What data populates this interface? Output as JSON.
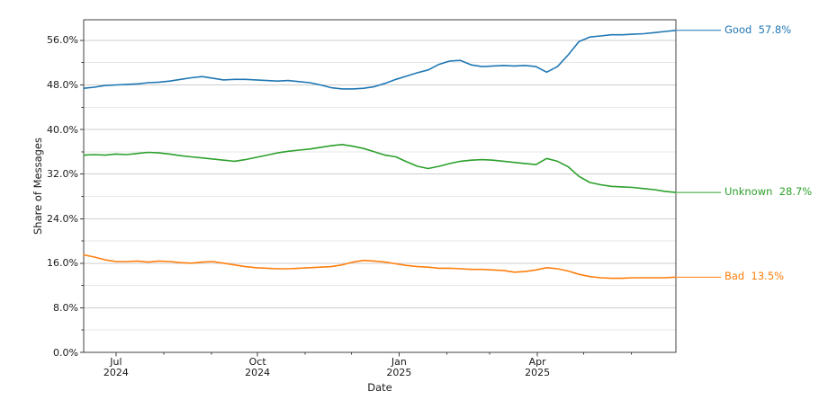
{
  "figure": {
    "background": "#ffffff"
  },
  "colors": {
    "good": "#1f77b4",
    "unknown": "#2ca02c",
    "bad": "#ff7f0e",
    "grid_major": "#cdcdcd",
    "grid_minor": "#e7e7e7",
    "spine": "#404040",
    "tick": "#404040",
    "text": "#1a1a1a"
  },
  "chart_data": {
    "type": "line",
    "title": "",
    "xlabel": "Date",
    "ylabel": "Share of Messages",
    "ylim": [
      0,
      59.7
    ],
    "grid": "horizontal only, major (8%) and minor (4%) lines, no vertical gridlines",
    "legend_position": "direct line labels at right edge with leader lines",
    "yticks_major": {
      "values": [
        0,
        8,
        16,
        24,
        32,
        40,
        48,
        56
      ],
      "labels": [
        "0.0%",
        "8.0%",
        "16.0%",
        "24.0%",
        "32.0%",
        "40.0%",
        "48.0%",
        "56.0%"
      ]
    },
    "yticks_minor": [
      4,
      12,
      20,
      28,
      36,
      44,
      52
    ],
    "xticks_major": [
      {
        "date": "2024-07-01",
        "label": "Jul\n2024"
      },
      {
        "date": "2024-10-01",
        "label": "Oct\n2024"
      },
      {
        "date": "2025-01-01",
        "label": "Jan\n2025"
      },
      {
        "date": "2025-04-01",
        "label": "Apr\n2025"
      }
    ],
    "xticks_minor": [
      "2024-08-01",
      "2024-09-01",
      "2024-11-01",
      "2024-12-01",
      "2025-02-01",
      "2025-03-01",
      "2025-05-01",
      "2025-06-01"
    ],
    "x_dates": [
      "2024-06-10",
      "2024-06-17",
      "2024-06-24",
      "2024-07-01",
      "2024-07-08",
      "2024-07-15",
      "2024-07-22",
      "2024-07-29",
      "2024-08-05",
      "2024-08-12",
      "2024-08-19",
      "2024-08-26",
      "2024-09-02",
      "2024-09-09",
      "2024-09-16",
      "2024-09-23",
      "2024-09-30",
      "2024-10-07",
      "2024-10-14",
      "2024-10-21",
      "2024-10-28",
      "2024-11-04",
      "2024-11-11",
      "2024-11-18",
      "2024-11-25",
      "2024-12-02",
      "2024-12-09",
      "2024-12-16",
      "2024-12-23",
      "2024-12-30",
      "2025-01-06",
      "2025-01-13",
      "2025-01-20",
      "2025-01-27",
      "2025-02-03",
      "2025-02-10",
      "2025-02-17",
      "2025-02-24",
      "2025-03-03",
      "2025-03-10",
      "2025-03-17",
      "2025-03-24",
      "2025-03-31",
      "2025-04-07",
      "2025-04-14",
      "2025-04-21",
      "2025-04-28",
      "2025-05-05",
      "2025-05-12",
      "2025-05-19",
      "2025-05-26",
      "2025-06-02",
      "2025-06-09",
      "2025-06-16",
      "2025-06-23",
      "2025-06-30"
    ],
    "series": [
      {
        "name": "Good",
        "color": "#1f77b4",
        "final_value": 57.8,
        "end_label": "Good  57.8%",
        "values": [
          47.4,
          47.6,
          47.9,
          48.0,
          48.1,
          48.2,
          48.4,
          48.5,
          48.7,
          49.0,
          49.3,
          49.5,
          49.2,
          48.9,
          49.0,
          49.0,
          48.9,
          48.8,
          48.7,
          48.8,
          48.6,
          48.4,
          48.0,
          47.5,
          47.3,
          47.3,
          47.4,
          47.7,
          48.3,
          49.0,
          49.6,
          50.2,
          50.7,
          51.7,
          52.3,
          52.4,
          51.6,
          51.3,
          51.4,
          51.5,
          51.4,
          51.5,
          51.3,
          50.3,
          51.3,
          53.4,
          55.8,
          56.6,
          56.8,
          57.0,
          57.0,
          57.1,
          57.2,
          57.4,
          57.6,
          57.8
        ]
      },
      {
        "name": "Unknown",
        "color": "#2ca02c",
        "final_value": 28.7,
        "end_label": "Unknown  28.7%",
        "values": [
          35.4,
          35.5,
          35.4,
          35.6,
          35.5,
          35.7,
          35.9,
          35.8,
          35.6,
          35.3,
          35.1,
          34.9,
          34.7,
          34.5,
          34.3,
          34.6,
          35.0,
          35.4,
          35.8,
          36.1,
          36.3,
          36.5,
          36.8,
          37.1,
          37.3,
          37.0,
          36.6,
          36.0,
          35.4,
          35.1,
          34.2,
          33.4,
          33.0,
          33.4,
          33.9,
          34.3,
          34.5,
          34.6,
          34.5,
          34.3,
          34.1,
          33.9,
          33.7,
          34.8,
          34.3,
          33.3,
          31.6,
          30.5,
          30.1,
          29.8,
          29.7,
          29.6,
          29.4,
          29.2,
          28.9,
          28.7
        ]
      },
      {
        "name": "Bad",
        "color": "#ff7f0e",
        "final_value": 13.5,
        "end_label": "Bad  13.5%",
        "values": [
          17.5,
          17.1,
          16.6,
          16.3,
          16.3,
          16.4,
          16.2,
          16.4,
          16.3,
          16.1,
          16.0,
          16.2,
          16.3,
          16.0,
          15.7,
          15.4,
          15.2,
          15.1,
          15.0,
          15.0,
          15.1,
          15.2,
          15.3,
          15.4,
          15.7,
          16.2,
          16.5,
          16.4,
          16.2,
          15.9,
          15.6,
          15.4,
          15.3,
          15.1,
          15.1,
          15.0,
          14.9,
          14.9,
          14.8,
          14.7,
          14.4,
          14.5,
          14.8,
          15.2,
          15.0,
          14.6,
          14.0,
          13.6,
          13.4,
          13.3,
          13.3,
          13.4,
          13.4,
          13.4,
          13.4,
          13.5
        ]
      }
    ]
  }
}
